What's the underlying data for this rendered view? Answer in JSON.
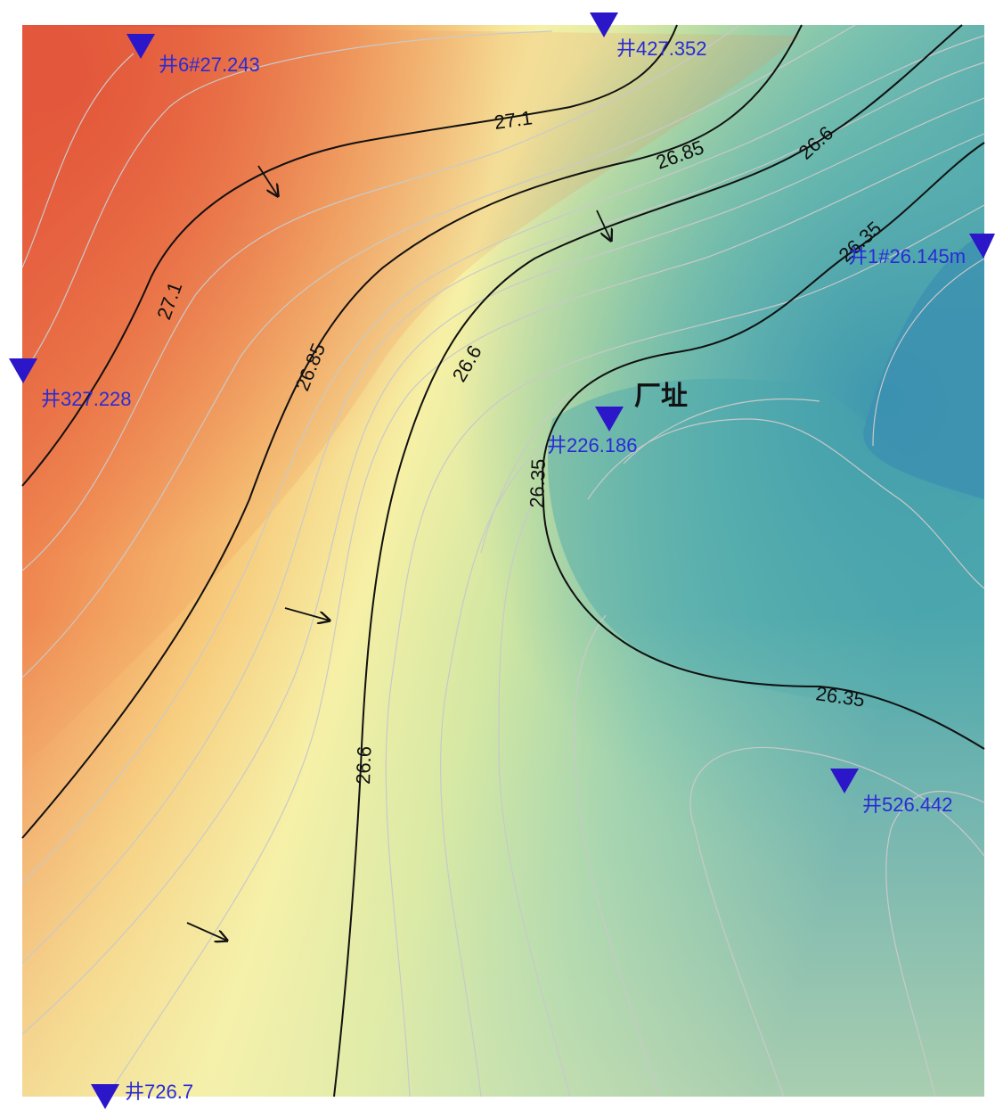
{
  "map": {
    "site_label": "厂址",
    "colors": {
      "high": "#e4553a",
      "mid": "#f4f2a8",
      "low": "#3b95ae",
      "well_marker": "#2b16c9",
      "well_text": "#2a2bd6",
      "major_contour": "#111111",
      "minor_contour": "#bfbfbf"
    },
    "contour_levels": [
      {
        "value": "27.1"
      },
      {
        "value": "26.85"
      },
      {
        "value": "26.6"
      },
      {
        "value": "26.35"
      }
    ],
    "wells": [
      {
        "label": "井6#27.243"
      },
      {
        "label": "井427.352"
      },
      {
        "label": "井1#26.145m"
      },
      {
        "label": "井327.228"
      },
      {
        "label": "井226.186"
      },
      {
        "label": "井526.442"
      },
      {
        "label": "井726.7"
      }
    ],
    "flow_arrow_icon": "flow-direction-arrow",
    "well_icon": "triangle-down"
  }
}
